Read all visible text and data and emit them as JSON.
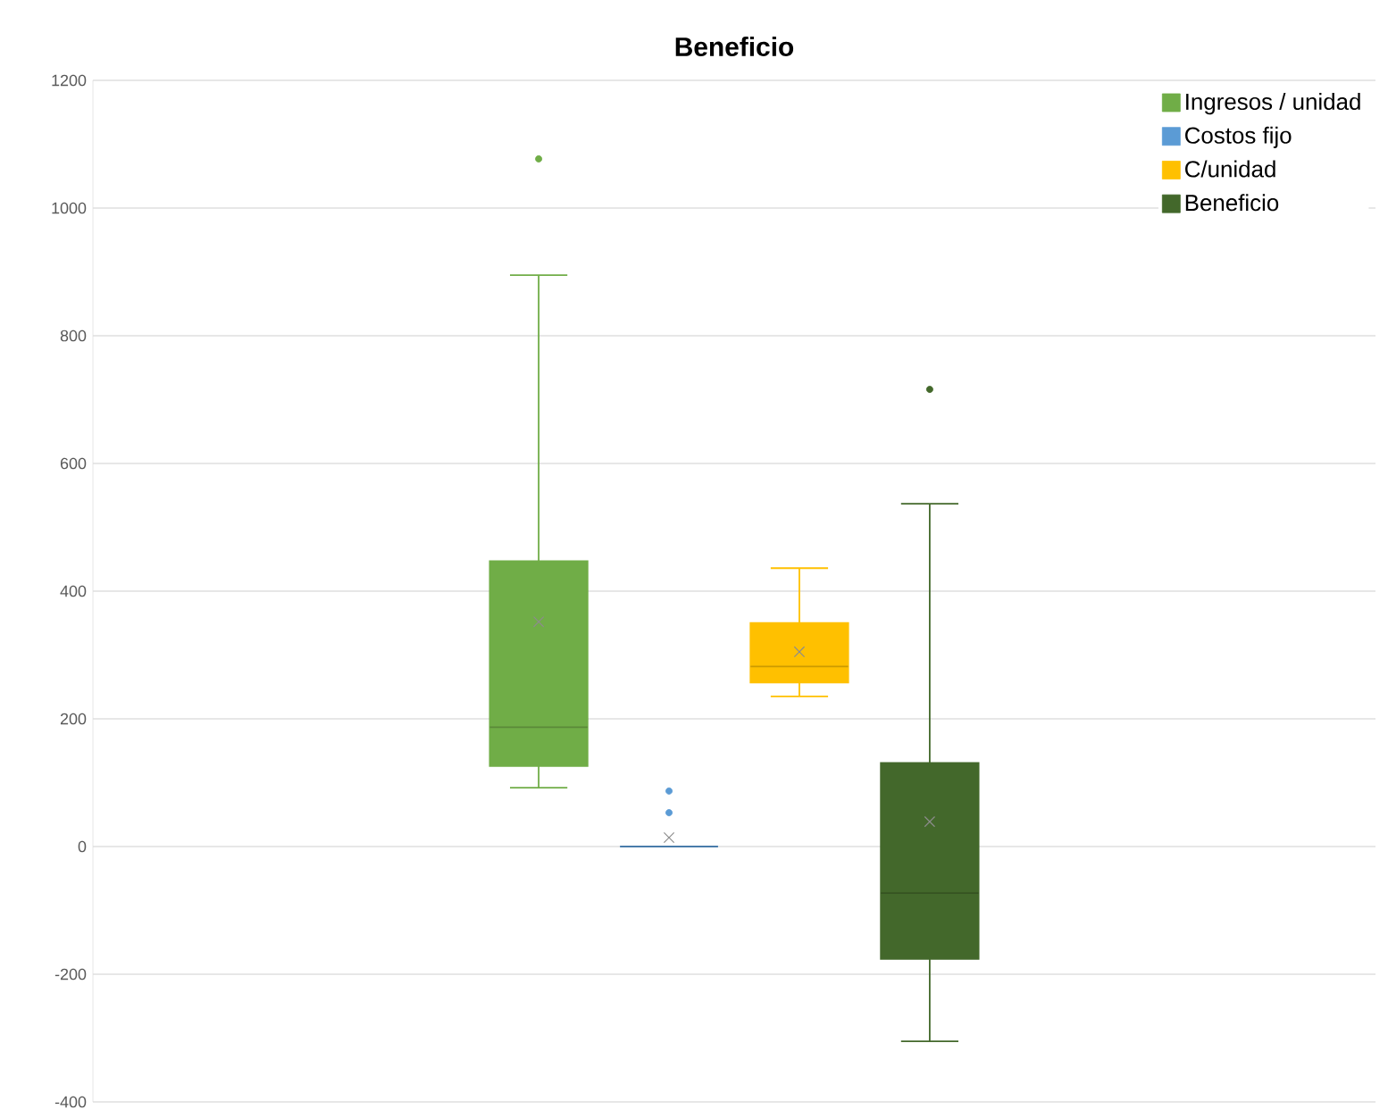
{
  "chart_data": {
    "type": "box",
    "title": "Beneficio",
    "categories": [
      null
    ],
    "ylim": [
      -400,
      1200
    ],
    "yticks": [
      -400,
      -200,
      0,
      200,
      400,
      600,
      800,
      1000,
      1200
    ],
    "grid": "y",
    "legend": "top right",
    "tick_labels": "y",
    "marker": "circle",
    "series": [
      {
        "name": "Ingresos / unidad",
        "color": "#70ad47",
        "boxes": [
          {
            "low": 92,
            "q1": 126,
            "median": 187,
            "q3": 447,
            "high": 895,
            "mean": 352,
            "outliers": [
              1077
            ]
          }
        ]
      },
      {
        "name": "Costos fijo",
        "color": "#5b9bd5",
        "boxes": [
          {
            "low": 0,
            "q1": 0,
            "median": 0,
            "q3": 0,
            "high": 0,
            "mean": 14,
            "outliers": [
              53,
              87
            ]
          }
        ]
      },
      {
        "name": "C/unidad",
        "color": "#ffc000",
        "boxes": [
          {
            "low": 235,
            "q1": 257,
            "median": 282,
            "q3": 350,
            "high": 436,
            "mean": 305
          }
        ]
      },
      {
        "name": "Beneficio",
        "color": "#43682b",
        "boxes": [
          {
            "low": -305,
            "q1": -176,
            "median": -73,
            "q3": 131,
            "high": 537,
            "mean": 39,
            "outliers": [
              716
            ]
          }
        ]
      }
    ]
  }
}
